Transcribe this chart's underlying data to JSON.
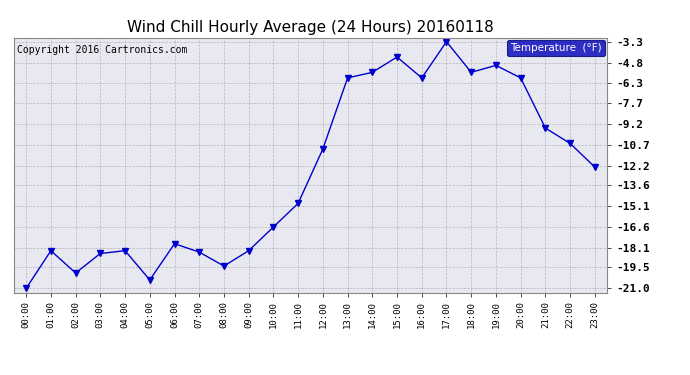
{
  "title": "Wind Chill Hourly Average (24 Hours) 20160118",
  "copyright": "Copyright 2016 Cartronics.com",
  "legend_label": "Temperature  (°F)",
  "x_labels": [
    "00:00",
    "01:00",
    "02:00",
    "03:00",
    "04:00",
    "05:00",
    "06:00",
    "07:00",
    "08:00",
    "09:00",
    "10:00",
    "11:00",
    "12:00",
    "13:00",
    "14:00",
    "15:00",
    "16:00",
    "17:00",
    "18:00",
    "19:00",
    "20:00",
    "21:00",
    "22:00",
    "23:00"
  ],
  "y_values": [
    -21.0,
    -18.3,
    -19.9,
    -18.5,
    -18.3,
    -20.4,
    -17.8,
    -18.4,
    -19.4,
    -18.3,
    -16.6,
    -14.9,
    -11.0,
    -5.9,
    -5.5,
    -4.4,
    -5.9,
    -3.3,
    -5.5,
    -5.0,
    -5.9,
    -9.5,
    -10.6,
    -12.3
  ],
  "ylim_min": -21.0,
  "ylim_max": -3.3,
  "yticks": [
    -3.3,
    -4.8,
    -6.3,
    -7.7,
    -9.2,
    -10.7,
    -12.2,
    -13.6,
    -15.1,
    -16.6,
    -18.1,
    -19.5,
    -21.0
  ],
  "ytick_labels": [
    "-3.3",
    "-4.8",
    "-6.3",
    "-7.7",
    "-9.2",
    "-10.7",
    "-12.2",
    "-13.6",
    "-15.1",
    "-16.6",
    "-18.1",
    "-19.5",
    "-21.0"
  ],
  "line_color": "#0000cc",
  "marker": "v",
  "marker_size": 4,
  "background_color": "#ffffff",
  "plot_bg_color": "#e8e8f0",
  "grid_color": "#aaaaaa",
  "title_fontsize": 11,
  "copyright_fontsize": 7,
  "legend_bg_color": "#0000bb",
  "legend_text_color": "#ffffff",
  "fig_width": 6.9,
  "fig_height": 3.75,
  "dpi": 100
}
